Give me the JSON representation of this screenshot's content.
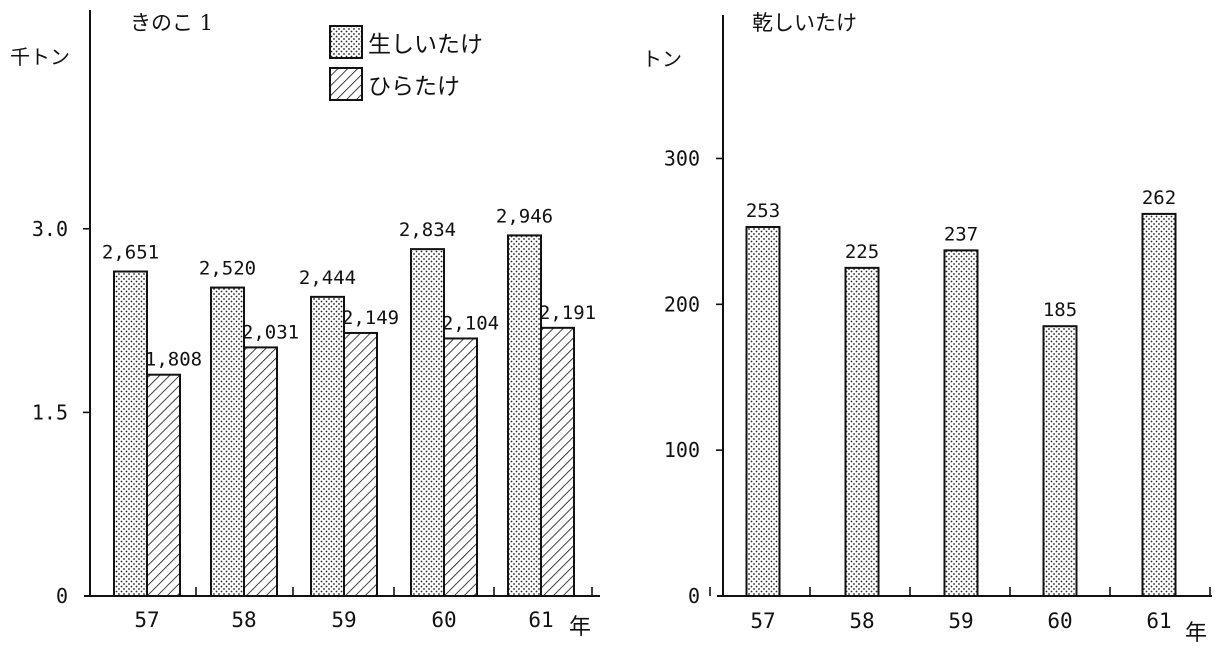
{
  "chart_data": [
    {
      "type": "bar",
      "title": "きのこ 1",
      "ylabel": "千トン",
      "xlabel": "年",
      "categories": [
        "57",
        "58",
        "59",
        "60",
        "61"
      ],
      "yticks": [
        "0",
        "1.5",
        "3.0"
      ],
      "ylim": [
        0,
        4.8
      ],
      "series": [
        {
          "name": "生しいたけ",
          "pattern": "dots",
          "values": [
            2.651,
            2.52,
            2.444,
            2.834,
            2.946
          ],
          "labels": [
            "2,651",
            "2,520",
            "2,444",
            "2,834",
            "2,946"
          ]
        },
        {
          "name": "ひらたけ",
          "pattern": "hatch",
          "values": [
            1.808,
            2.031,
            2.149,
            2.104,
            2.191
          ],
          "labels": [
            "1,808",
            "2,031",
            "2,149",
            "2,104",
            "2,191"
          ]
        }
      ],
      "legend": "top-center",
      "grid": false
    },
    {
      "type": "bar",
      "title": "乾しいたけ",
      "ylabel": "トン",
      "xlabel": "年",
      "categories": [
        "57",
        "58",
        "59",
        "60",
        "61"
      ],
      "yticks": [
        "0",
        "100",
        "200",
        "300"
      ],
      "ylim": [
        0,
        405
      ],
      "series": [
        {
          "name": "",
          "pattern": "dots",
          "values": [
            253,
            225,
            237,
            185,
            262
          ],
          "labels": [
            "253",
            "225",
            "237",
            "185",
            "262"
          ]
        }
      ],
      "grid": false
    }
  ]
}
